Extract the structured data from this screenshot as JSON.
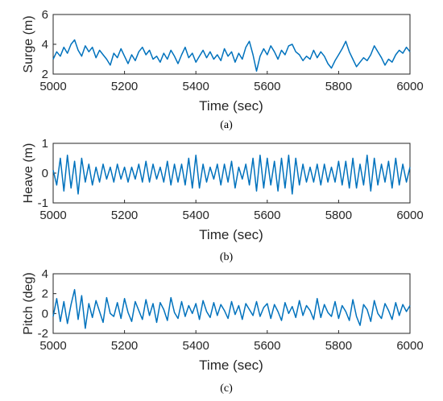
{
  "chart_data": [
    {
      "type": "line",
      "caption": "(a)",
      "xlabel": "Time (sec)",
      "ylabel": "Surge (m)",
      "xlim": [
        5000,
        6000
      ],
      "ylim": [
        2,
        6
      ],
      "xticks": [
        5000,
        5200,
        5400,
        5600,
        5800,
        6000
      ],
      "yticks": [
        2,
        4,
        6
      ],
      "color": "#0072BD",
      "series": [
        {
          "x": [
            5000,
            5010,
            5020,
            5030,
            5040,
            5050,
            5060,
            5070,
            5080,
            5090,
            5100,
            5110,
            5120,
            5130,
            5140,
            5150,
            5160,
            5170,
            5180,
            5190,
            5200,
            5210,
            5220,
            5230,
            5240,
            5250,
            5260,
            5270,
            5280,
            5290,
            5300,
            5310,
            5320,
            5330,
            5340,
            5350,
            5360,
            5370,
            5380,
            5390,
            5400,
            5410,
            5420,
            5430,
            5440,
            5450,
            5460,
            5470,
            5480,
            5490,
            5500,
            5510,
            5520,
            5530,
            5540,
            5550,
            5560,
            5570,
            5580,
            5590,
            5600,
            5610,
            5620,
            5630,
            5640,
            5650,
            5660,
            5670,
            5680,
            5690,
            5700,
            5710,
            5720,
            5730,
            5740,
            5750,
            5760,
            5770,
            5780,
            5790,
            5800,
            5810,
            5820,
            5830,
            5840,
            5850,
            5860,
            5870,
            5880,
            5890,
            5900,
            5910,
            5920,
            5930,
            5940,
            5950,
            5960,
            5970,
            5980,
            5990,
            6000
          ],
          "values": [
            3.0,
            3.5,
            3.2,
            3.8,
            3.4,
            4.0,
            4.3,
            3.6,
            3.2,
            3.9,
            3.5,
            3.8,
            3.1,
            3.6,
            3.3,
            3.0,
            2.6,
            3.4,
            3.1,
            3.7,
            3.2,
            2.7,
            3.3,
            2.9,
            3.5,
            3.8,
            3.3,
            3.6,
            3.0,
            3.2,
            2.8,
            3.4,
            3.0,
            3.6,
            3.2,
            2.7,
            3.3,
            3.8,
            3.1,
            3.4,
            2.8,
            3.2,
            3.6,
            3.1,
            3.5,
            3.0,
            3.3,
            2.9,
            3.7,
            3.2,
            3.5,
            2.8,
            3.4,
            3.0,
            3.8,
            4.2,
            3.3,
            2.2,
            3.2,
            3.7,
            3.3,
            3.9,
            3.5,
            3.0,
            3.6,
            3.3,
            3.9,
            4.0,
            3.5,
            3.3,
            2.9,
            3.2,
            3.0,
            3.6,
            3.1,
            3.5,
            3.2,
            2.7,
            2.4,
            2.9,
            3.3,
            3.7,
            4.2,
            3.5,
            3.0,
            2.5,
            2.8,
            3.1,
            2.9,
            3.3,
            3.9,
            3.5,
            3.1,
            2.6,
            3.0,
            2.8,
            3.3,
            3.6,
            3.4,
            3.8,
            3.5
          ]
        }
      ]
    },
    {
      "type": "line",
      "caption": "(b)",
      "xlabel": "Time (sec)",
      "ylabel": "Heave (m)",
      "xlim": [
        5000,
        6000
      ],
      "ylim": [
        -1,
        1
      ],
      "xticks": [
        5000,
        5200,
        5400,
        5600,
        5800,
        6000
      ],
      "yticks": [
        -1,
        0,
        1
      ],
      "color": "#0072BD",
      "series": [
        {
          "x": [
            5000,
            5010,
            5020,
            5030,
            5040,
            5050,
            5060,
            5070,
            5080,
            5090,
            5100,
            5110,
            5120,
            5130,
            5140,
            5150,
            5160,
            5170,
            5180,
            5190,
            5200,
            5210,
            5220,
            5230,
            5240,
            5250,
            5260,
            5270,
            5280,
            5290,
            5300,
            5310,
            5320,
            5330,
            5340,
            5350,
            5360,
            5370,
            5380,
            5390,
            5400,
            5410,
            5420,
            5430,
            5440,
            5450,
            5460,
            5470,
            5480,
            5490,
            5500,
            5510,
            5520,
            5530,
            5540,
            5550,
            5560,
            5570,
            5580,
            5590,
            5600,
            5610,
            5620,
            5630,
            5640,
            5650,
            5660,
            5670,
            5680,
            5690,
            5700,
            5710,
            5720,
            5730,
            5740,
            5750,
            5760,
            5770,
            5780,
            5790,
            5800,
            5810,
            5820,
            5830,
            5840,
            5850,
            5860,
            5870,
            5880,
            5890,
            5900,
            5910,
            5920,
            5930,
            5940,
            5950,
            5960,
            5970,
            5980,
            5990,
            6000
          ],
          "values": [
            0.1,
            -0.4,
            0.5,
            -0.6,
            0.6,
            -0.5,
            0.4,
            -0.7,
            0.5,
            -0.3,
            0.3,
            -0.4,
            0.2,
            -0.3,
            0.3,
            -0.2,
            0.2,
            -0.3,
            0.3,
            -0.2,
            0.2,
            -0.3,
            0.2,
            -0.2,
            0.3,
            -0.3,
            0.4,
            -0.3,
            0.3,
            -0.2,
            0.2,
            -0.3,
            0.4,
            -0.4,
            0.3,
            -0.3,
            0.3,
            -0.4,
            0.5,
            -0.5,
            0.6,
            -0.5,
            0.3,
            -0.3,
            0.2,
            -0.2,
            0.3,
            -0.4,
            0.3,
            -0.3,
            0.4,
            -0.5,
            0.2,
            -0.2,
            0.3,
            -0.4,
            0.5,
            -0.6,
            0.6,
            -0.5,
            0.5,
            -0.4,
            0.4,
            -0.6,
            0.5,
            -0.5,
            0.6,
            -0.7,
            0.5,
            -0.4,
            0.3,
            -0.3,
            0.2,
            -0.3,
            0.3,
            -0.4,
            0.3,
            -0.3,
            0.2,
            -0.3,
            0.4,
            -0.4,
            0.4,
            -0.5,
            0.5,
            -0.5,
            0.3,
            -0.4,
            0.6,
            -0.6,
            0.5,
            -0.4,
            0.3,
            -0.3,
            0.4,
            -0.5,
            0.5,
            -0.4,
            0.3,
            -0.3,
            0.2
          ]
        }
      ]
    },
    {
      "type": "line",
      "caption": "(c)",
      "xlabel": "Time (sec)",
      "ylabel": "Pitch (deg)",
      "xlim": [
        5000,
        6000
      ],
      "ylim": [
        -2,
        4
      ],
      "xticks": [
        5000,
        5200,
        5400,
        5600,
        5800,
        6000
      ],
      "yticks": [
        -2,
        0,
        2,
        4
      ],
      "color": "#0072BD",
      "series": [
        {
          "x": [
            5000,
            5010,
            5020,
            5030,
            5040,
            5050,
            5060,
            5070,
            5080,
            5090,
            5100,
            5110,
            5120,
            5130,
            5140,
            5150,
            5160,
            5170,
            5180,
            5190,
            5200,
            5210,
            5220,
            5230,
            5240,
            5250,
            5260,
            5270,
            5280,
            5290,
            5300,
            5310,
            5320,
            5330,
            5340,
            5350,
            5360,
            5370,
            5380,
            5390,
            5400,
            5410,
            5420,
            5430,
            5440,
            5450,
            5460,
            5470,
            5480,
            5490,
            5500,
            5510,
            5520,
            5530,
            5540,
            5550,
            5560,
            5570,
            5580,
            5590,
            5600,
            5610,
            5620,
            5630,
            5640,
            5650,
            5660,
            5670,
            5680,
            5690,
            5700,
            5710,
            5720,
            5730,
            5740,
            5750,
            5760,
            5770,
            5780,
            5790,
            5800,
            5810,
            5820,
            5830,
            5840,
            5850,
            5860,
            5870,
            5880,
            5890,
            5900,
            5910,
            5920,
            5930,
            5940,
            5950,
            5960,
            5970,
            5980,
            5990,
            6000
          ],
          "values": [
            -0.3,
            1.5,
            -0.8,
            1.2,
            -1.0,
            0.9,
            2.4,
            -0.6,
            1.8,
            -1.5,
            1.0,
            -0.4,
            1.3,
            0.2,
            -0.9,
            1.6,
            0.0,
            -0.3,
            1.1,
            -0.5,
            1.5,
            0.1,
            -0.8,
            1.2,
            0.3,
            -0.6,
            1.4,
            -0.2,
            1.0,
            -0.9,
            1.1,
            0.4,
            -0.7,
            1.6,
            0.1,
            -0.5,
            1.2,
            -0.3,
            0.8,
            0.0,
            1.0,
            -0.6,
            1.3,
            0.2,
            -0.4,
            1.1,
            -0.2,
            0.9,
            0.3,
            -0.5,
            1.2,
            -0.1,
            0.8,
            -0.6,
            1.0,
            0.4,
            -0.2,
            1.2,
            -0.3,
            0.6,
            1.0,
            -0.5,
            0.9,
            0.2,
            -0.7,
            1.1,
            0.0,
            0.7,
            -0.4,
            1.3,
            -0.2,
            0.8,
            0.3,
            -0.6,
            1.5,
            -0.4,
            0.9,
            0.1,
            -0.3,
            1.2,
            -0.5,
            0.8,
            0.2,
            -0.7,
            1.4,
            -0.3,
            -1.2,
            0.9,
            0.4,
            -0.8,
            1.3,
            0.0,
            -0.5,
            1.0,
            0.3,
            -0.6,
            1.1,
            -0.2,
            0.9,
            0.2,
            0.8
          ]
        }
      ]
    }
  ]
}
